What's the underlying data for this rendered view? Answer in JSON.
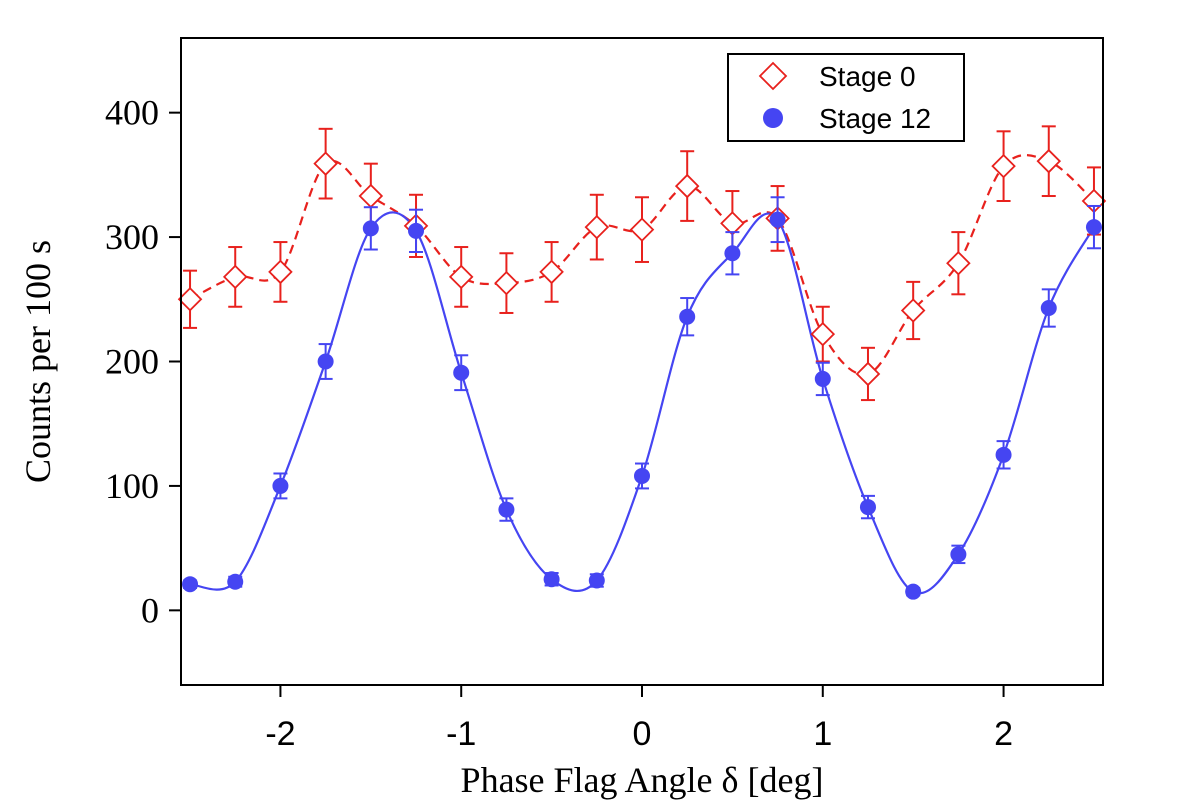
{
  "chart_data": {
    "type": "scatter",
    "xlabel": "Phase Flag Angle δ [deg]",
    "ylabel": "Counts per 100 s",
    "xlim": [
      -2.55,
      2.55
    ],
    "ylim": [
      -60,
      460
    ],
    "xticks": [
      -2,
      -1,
      0,
      1,
      2
    ],
    "xtick_labels": [
      "-2",
      "-1",
      "0",
      "1",
      "2"
    ],
    "yticks": [
      0,
      100,
      200,
      300,
      400
    ],
    "ytick_labels": [
      "0",
      "100",
      "200",
      "300",
      "400"
    ],
    "grid": false,
    "legend_position": "top-right",
    "series": [
      {
        "name": "Stage 0",
        "marker": "open-diamond",
        "color": "#e8211d",
        "fit_style": "dashed",
        "x": [
          -2.5,
          -2.25,
          -2.0,
          -1.75,
          -1.5,
          -1.25,
          -1.0,
          -0.75,
          -0.5,
          -0.25,
          0.0,
          0.25,
          0.5,
          0.75,
          1.0,
          1.25,
          1.5,
          1.75,
          2.0,
          2.25,
          2.5
        ],
        "y": [
          250,
          268,
          272,
          359,
          333,
          309,
          268,
          263,
          272,
          308,
          306,
          341,
          311,
          315,
          222,
          190,
          241,
          279,
          357,
          361,
          329
        ],
        "err": [
          23,
          24,
          24,
          28,
          26,
          25,
          24,
          24,
          24,
          26,
          26,
          28,
          26,
          26,
          22,
          21,
          23,
          25,
          28,
          28,
          27
        ]
      },
      {
        "name": "Stage 12",
        "marker": "filled-circle",
        "color": "#4545f2",
        "fit_style": "solid",
        "x": [
          -2.5,
          -2.25,
          -2.0,
          -1.75,
          -1.5,
          -1.25,
          -1.0,
          -0.75,
          -0.5,
          -0.25,
          0.0,
          0.25,
          0.5,
          0.75,
          1.0,
          1.25,
          1.5,
          1.75,
          2.0,
          2.25,
          2.5
        ],
        "y": [
          21,
          23,
          100,
          200,
          307,
          305,
          191,
          81,
          25,
          24,
          108,
          236,
          287,
          314,
          186,
          83,
          15,
          45,
          125,
          243,
          308
        ],
        "err": [
          3,
          4,
          10,
          14,
          17,
          17,
          14,
          9,
          5,
          5,
          10,
          15,
          17,
          18,
          13,
          9,
          3,
          7,
          11,
          15,
          17
        ]
      }
    ]
  }
}
